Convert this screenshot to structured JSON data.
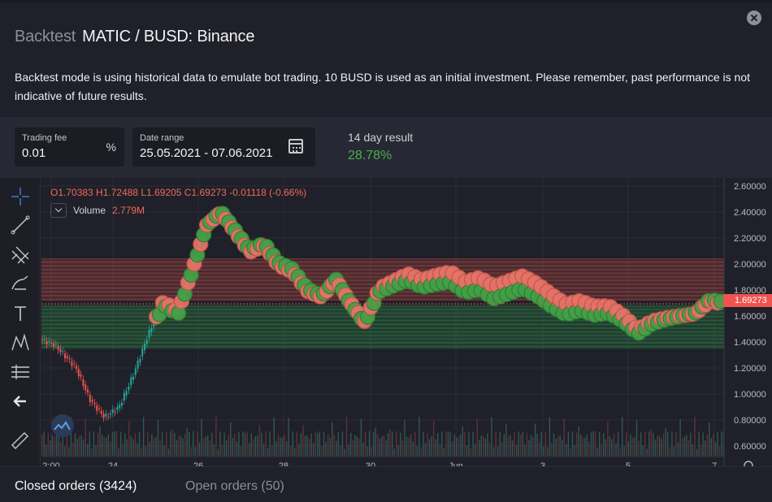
{
  "header": {
    "muted_title": "Backtest",
    "title": "MATIC / BUSD: Binance",
    "description": "Backtest mode is using historical data to emulate bot trading. 10 BUSD is used as an initial investment. Please remember, past performance is not indicative of future results."
  },
  "settings": {
    "trading_fee": {
      "label": "Trading fee",
      "value": "0.01",
      "suffix": "%"
    },
    "date_range": {
      "label": "Date range",
      "value": "25.05.2021 - 07.06.2021"
    },
    "result": {
      "label": "14 day result",
      "value": "28.78%"
    }
  },
  "chart_legend": {
    "ohlc_values": "O1.70383 H1.72488 L1.69205 C1.69273",
    "change": "-0.01118 (-0.66%)",
    "volume_label": "Volume",
    "volume_value": "2.779M"
  },
  "chart_data": {
    "type": "candlestick",
    "symbol": "MATIC / BUSD",
    "last_price": "1.69273",
    "y_ticks": [
      "2.60000",
      "2.40000",
      "2.20000",
      "2.00000",
      "1.80000",
      "1.60000",
      "1.40000",
      "1.20000",
      "1.00000",
      "0.80000",
      "0.60000"
    ],
    "x_ticks": [
      "2:00",
      "24",
      "26",
      "28",
      "30",
      "Jun",
      "3",
      "5",
      "7"
    ],
    "grid": true,
    "price_path": [
      [
        0,
        1.42
      ],
      [
        0.02,
        1.38
      ],
      [
        0.05,
        1.2
      ],
      [
        0.07,
        0.95
      ],
      [
        0.09,
        0.82
      ],
      [
        0.11,
        0.9
      ],
      [
        0.13,
        1.15
      ],
      [
        0.15,
        1.45
      ],
      [
        0.17,
        1.7
      ],
      [
        0.19,
        1.62
      ],
      [
        0.21,
        1.95
      ],
      [
        0.23,
        2.3
      ],
      [
        0.25,
        2.4
      ],
      [
        0.27,
        2.25
      ],
      [
        0.29,
        2.1
      ],
      [
        0.31,
        2.15
      ],
      [
        0.33,
        2.0
      ],
      [
        0.35,
        1.95
      ],
      [
        0.37,
        1.8
      ],
      [
        0.39,
        1.75
      ],
      [
        0.41,
        1.88
      ],
      [
        0.43,
        1.7
      ],
      [
        0.45,
        1.55
      ],
      [
        0.47,
        1.8
      ],
      [
        0.49,
        1.85
      ],
      [
        0.51,
        1.9
      ],
      [
        0.53,
        1.85
      ],
      [
        0.55,
        1.88
      ],
      [
        0.57,
        1.9
      ],
      [
        0.59,
        1.82
      ],
      [
        0.61,
        1.85
      ],
      [
        0.63,
        1.78
      ],
      [
        0.65,
        1.82
      ],
      [
        0.67,
        1.86
      ],
      [
        0.69,
        1.8
      ],
      [
        0.71,
        1.72
      ],
      [
        0.73,
        1.65
      ],
      [
        0.75,
        1.68
      ],
      [
        0.77,
        1.64
      ],
      [
        0.79,
        1.65
      ],
      [
        0.81,
        1.58
      ],
      [
        0.83,
        1.48
      ],
      [
        0.85,
        1.55
      ],
      [
        0.87,
        1.58
      ],
      [
        0.89,
        1.6
      ],
      [
        0.91,
        1.62
      ],
      [
        0.93,
        1.72
      ],
      [
        0.95,
        1.7
      ]
    ],
    "grid_levels": {
      "sell_from": 1.72,
      "sell_to": 2.04,
      "buy_from": 1.35,
      "buy_to": 1.68
    }
  },
  "bottom_tabs": {
    "closed": "Closed orders (3424)",
    "open": "Open orders (50)"
  },
  "colors": {
    "up": "#26a69a",
    "down": "#ef5350",
    "buy": "#43a047",
    "sell": "#e57368",
    "accent_green": "#4caf50"
  }
}
